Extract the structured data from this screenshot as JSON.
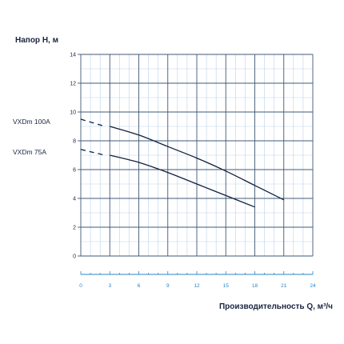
{
  "chart_data": {
    "type": "line",
    "ylabel": "Напор H, м",
    "xlabel": "Производительность Q, м³/ч",
    "xlim": [
      0,
      24
    ],
    "ylim": [
      0,
      14
    ],
    "x_ticks": [
      "0",
      "3",
      "6",
      "9",
      "12",
      "15",
      "18",
      "21",
      "24"
    ],
    "y_ticks": [
      "0",
      "2",
      "4",
      "6",
      "8",
      "10",
      "12",
      "14"
    ],
    "grid": true,
    "series": [
      {
        "name": "VXDm 100A",
        "dashed_segment": {
          "x": [
            0,
            2.5
          ],
          "y": [
            9.5,
            9.0
          ]
        },
        "x": [
          3,
          6,
          9,
          12,
          15,
          18,
          21
        ],
        "y": [
          9.0,
          8.4,
          7.6,
          6.8,
          5.9,
          4.9,
          3.9
        ]
      },
      {
        "name": "VXDm 75A",
        "dashed_segment": {
          "x": [
            0,
            2.5
          ],
          "y": [
            7.4,
            7.0
          ]
        },
        "x": [
          3,
          6,
          9,
          12,
          15,
          18
        ],
        "y": [
          7.0,
          6.5,
          5.8,
          5.0,
          4.2,
          3.4
        ]
      }
    ]
  },
  "colors": {
    "grid_major": "#3f5878",
    "grid_minor": "#b9d3ea",
    "curve": "#12213e",
    "x_tick": "#2a84c6",
    "text": "#1a2440"
  }
}
